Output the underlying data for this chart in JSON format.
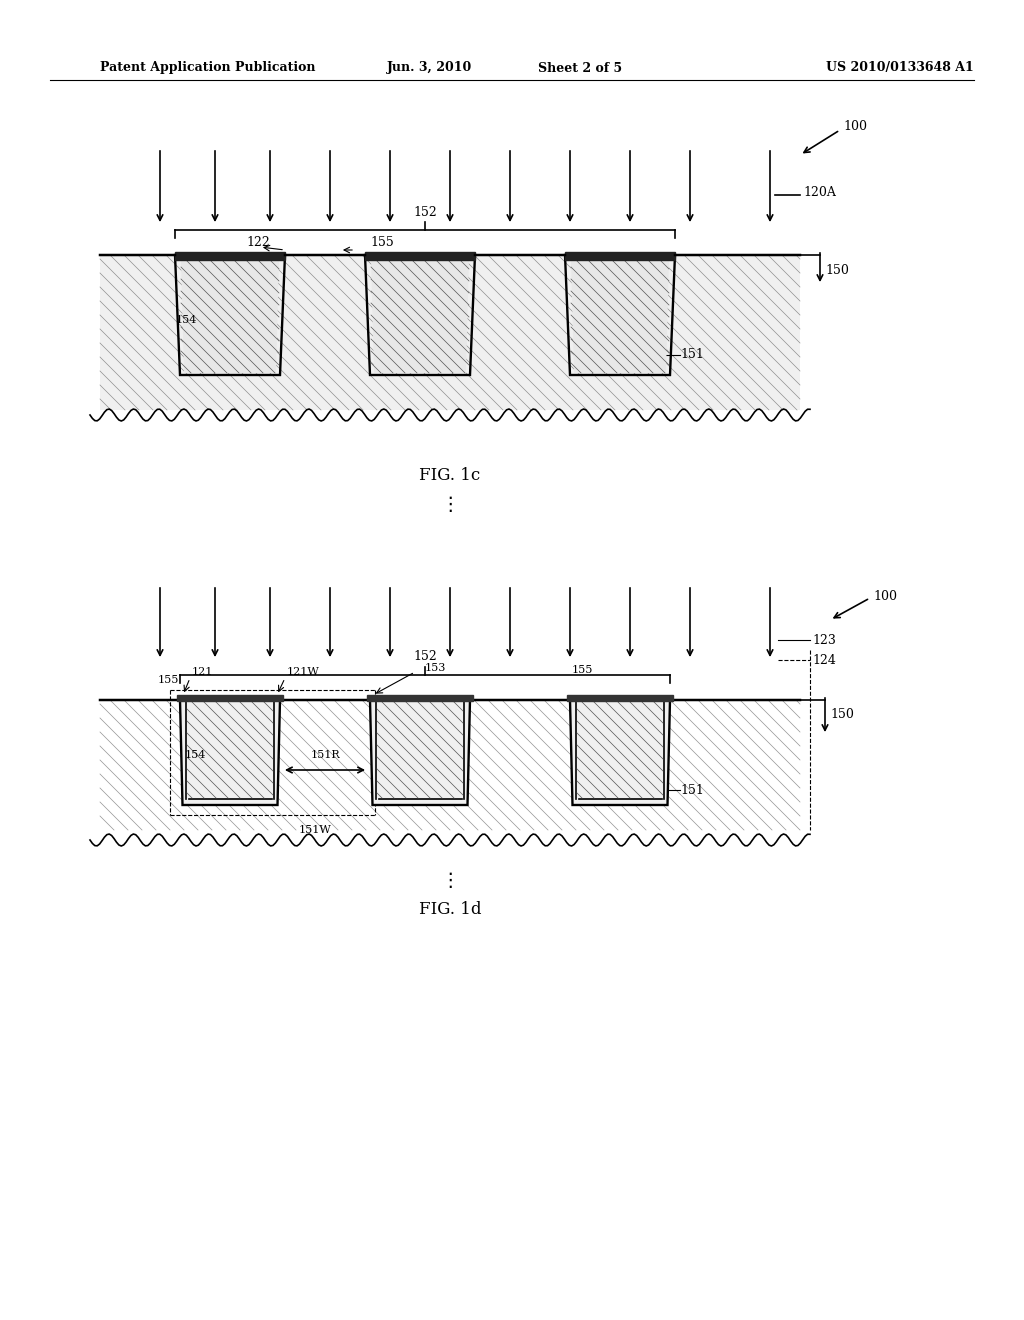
{
  "bg_color": "#ffffff",
  "header_text": "Patent Application Publication",
  "header_date": "Jun. 3, 2010",
  "header_sheet": "Sheet 2 of 5",
  "header_patent": "US 2010/0133648 A1",
  "fig1c_label": "FIG. 1c",
  "fig1d_label": "FIG. 1d",
  "line_color": "#000000",
  "hatch_color": "#000000",
  "hatch_pattern": "////"
}
